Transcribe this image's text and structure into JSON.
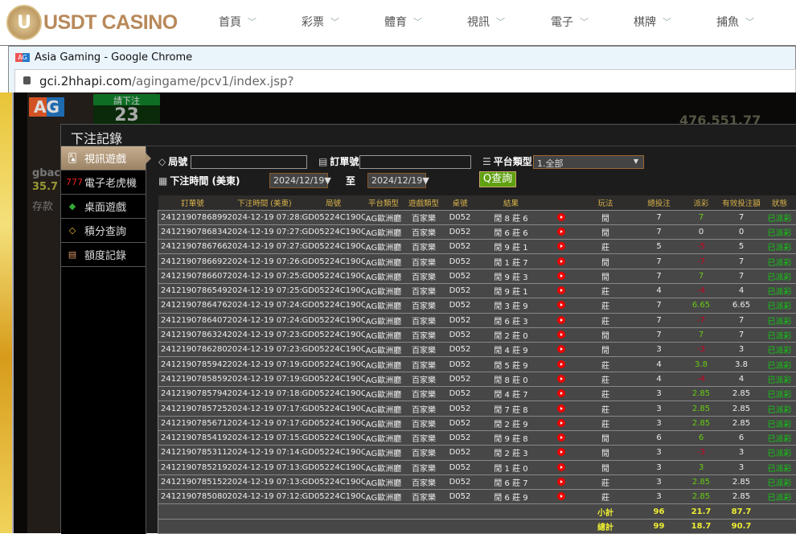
{
  "site": {
    "logo_text": "USDT CASINO",
    "logo_mark": "U",
    "nav": [
      "首頁",
      "彩票",
      "體育",
      "視訊",
      "電子",
      "棋牌",
      "捕魚"
    ]
  },
  "browser": {
    "title": "Asia Gaming - Google Chrome",
    "url_host": "gci.2hhapi.com",
    "url_path": "/agingame/pcv1/index.jsp?"
  },
  "game_bg": {
    "logo": "AG",
    "bet_label": "請下注",
    "countdown": "23",
    "user": "gbac",
    "balance": "35.7",
    "deposit": "存款",
    "big_number": "476,551.77"
  },
  "modal": {
    "title": "下注記錄",
    "menu": [
      {
        "label": "視訊遊戲",
        "icon": "cards-icon",
        "active": true
      },
      {
        "label": "電子老虎機",
        "icon": "slot-777-icon"
      },
      {
        "label": "桌面遊戲",
        "icon": "dice-icon"
      },
      {
        "label": "積分查詢",
        "icon": "diamond-icon"
      },
      {
        "label": "額度記錄",
        "icon": "document-icon"
      }
    ],
    "filters": {
      "round_label": "局號",
      "round_value": "",
      "order_label": "訂單號",
      "order_value": "",
      "platform_label": "平台類型",
      "platform_value": "1.全部",
      "time_label": "下注時間 (美東)",
      "date_from": "2024/12/19▼",
      "to_label": "至",
      "date_to": "2024/12/19▼",
      "query_label": "查詢"
    }
  },
  "table": {
    "headers": [
      "訂單號",
      "下注時間 (美東)",
      "局號",
      "平台類型",
      "遊戲類型",
      "桌號",
      "結果",
      "",
      "玩法",
      "總投注",
      "派彩",
      "有效投注額",
      "狀態"
    ],
    "rows": [
      [
        "241219078689912",
        "2024-12-19 07:28:28",
        "GD05224C190QT",
        "AG歐洲廳",
        "百家樂",
        "D052",
        "閒 8 莊 6",
        "閒",
        "7",
        "7",
        "7",
        "已派彩"
      ],
      [
        "241219078683436",
        "2024-12-19 07:27:50",
        "GD05224C190QS",
        "AG歐洲廳",
        "百家樂",
        "D052",
        "閒 6 莊 6",
        "閒",
        "7",
        "0",
        "0",
        "已派彩"
      ],
      [
        "241219078676672",
        "2024-12-19 07:27:16",
        "GD05224C190QR",
        "AG歐洲廳",
        "百家樂",
        "D052",
        "閒 9 莊 1",
        "莊",
        "5",
        "-5",
        "5",
        "已派彩"
      ],
      [
        "241219078669228",
        "2024-12-19 07:26:36",
        "GD05224C190QQ",
        "AG歐洲廳",
        "百家樂",
        "D052",
        "閒 1 莊 7",
        "閒",
        "7",
        "-7",
        "7",
        "已派彩"
      ],
      [
        "241219078660712",
        "2024-12-19 07:25:55",
        "GD05224C190QP",
        "AG歐洲廳",
        "百家樂",
        "D052",
        "閒 9 莊 3",
        "閒",
        "7",
        "7",
        "7",
        "已派彩"
      ],
      [
        "241219078654937",
        "2024-12-19 07:25:24",
        "GD05224C190QO",
        "AG歐洲廳",
        "百家樂",
        "D052",
        "閒 9 莊 1",
        "莊",
        "4",
        "-4",
        "4",
        "已派彩"
      ],
      [
        "241219078647660",
        "2024-12-19 07:24:43",
        "GD05224C190QN",
        "AG歐洲廳",
        "百家樂",
        "D052",
        "閒 3 莊 9",
        "莊",
        "7",
        "6.65",
        "6.65",
        "已派彩"
      ],
      [
        "241219078640719",
        "2024-12-19 07:24:09",
        "GD05224C190QM",
        "AG歐洲廳",
        "百家樂",
        "D052",
        "閒 6 莊 3",
        "莊",
        "7",
        "-7",
        "7",
        "已派彩"
      ],
      [
        "241219078632444",
        "2024-12-19 07:23:23",
        "GD05224C190QL",
        "AG歐洲廳",
        "百家樂",
        "D052",
        "閒 2 莊 0",
        "閒",
        "7",
        "7",
        "7",
        "已派彩"
      ],
      [
        "241219078628009",
        "2024-12-19 07:23:02",
        "GD05224C190QK",
        "AG歐洲廳",
        "百家樂",
        "D052",
        "閒 4 莊 9",
        "閒",
        "3",
        "-3",
        "3",
        "已派彩"
      ],
      [
        "241219078594265",
        "2024-12-19 07:19:51",
        "GD05224C190QF",
        "AG歐洲廳",
        "百家樂",
        "D052",
        "閒 5 莊 9",
        "莊",
        "4",
        "3.8",
        "3.8",
        "已派彩"
      ],
      [
        "241219078585989",
        "2024-12-19 07:19:05",
        "GD05224C190QE",
        "AG歐洲廳",
        "百家樂",
        "D052",
        "閒 8 莊 0",
        "莊",
        "4",
        "-4",
        "4",
        "已派彩"
      ],
      [
        "241219078579413",
        "2024-12-19 07:18:30",
        "GD05224C190QD",
        "AG歐洲廳",
        "百家樂",
        "D052",
        "閒 4 莊 7",
        "莊",
        "3",
        "2.85",
        "2.85",
        "已派彩"
      ],
      [
        "241219078572594",
        "2024-12-19 07:17:52",
        "GD05224C190QC",
        "AG歐洲廳",
        "百家樂",
        "D052",
        "閒 7 莊 8",
        "莊",
        "3",
        "2.85",
        "2.85",
        "已派彩"
      ],
      [
        "241219078567183",
        "2024-12-19 07:17:20",
        "GD05224C190QB",
        "AG歐洲廳",
        "百家樂",
        "D052",
        "閒 2 莊 9",
        "莊",
        "3",
        "2.85",
        "2.85",
        "已派彩"
      ],
      [
        "241219078541983",
        "2024-12-19 07:15:16",
        "GD05224C190Q8",
        "AG歐洲廳",
        "百家樂",
        "D052",
        "閒 9 莊 8",
        "閒",
        "6",
        "6",
        "6",
        "已派彩"
      ],
      [
        "241219078531192",
        "2024-12-19 07:14:28",
        "GD05224C190Q7",
        "AG歐洲廳",
        "百家樂",
        "D052",
        "閒 2 莊 3",
        "閒",
        "3",
        "-3",
        "3",
        "已派彩"
      ],
      [
        "241219078521919",
        "2024-12-19 07:13:47",
        "GD05224C190Q6",
        "AG歐洲廳",
        "百家樂",
        "D052",
        "閒 1 莊 0",
        "閒",
        "3",
        "3",
        "3",
        "已派彩"
      ],
      [
        "241219078515266",
        "2024-12-19 07:13:10",
        "GD05224C190Q5",
        "AG歐洲廳",
        "百家樂",
        "D052",
        "閒 6 莊 7",
        "莊",
        "3",
        "2.85",
        "2.85",
        "已派彩"
      ],
      [
        "241219078508070",
        "2024-12-19 07:12:32",
        "GD05224C190Q4",
        "AG歐洲廳",
        "百家樂",
        "D052",
        "閒 6 莊 9",
        "莊",
        "3",
        "2.85",
        "2.85",
        "已派彩"
      ]
    ],
    "subtotal": {
      "label": "小計",
      "bet": "96",
      "payout": "21.7",
      "valid": "87.7"
    },
    "total": {
      "label": "總計",
      "bet": "99",
      "payout": "18.7",
      "valid": "90.7"
    }
  },
  "colors": {
    "win": "#66cc11",
    "loss": "#cc0022",
    "status": "#11cc11",
    "accent": "#d8b24a",
    "query": "#5fa111"
  }
}
